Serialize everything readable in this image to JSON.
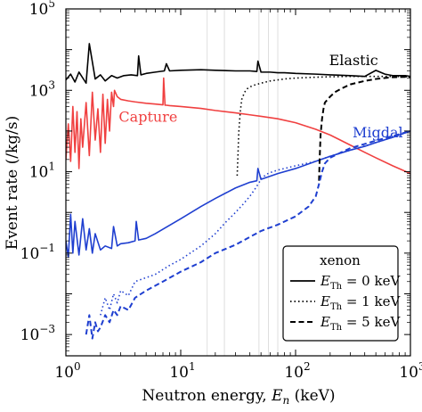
{
  "chart_data": {
    "type": "line",
    "title": "",
    "xlabel": "Neutron energy, E_n (keV)",
    "ylabel": "Event rate (/kg/s)",
    "xscale": "log",
    "yscale": "log",
    "xlim": [
      1,
      1000
    ],
    "ylim": [
      0.0003,
      100000
    ],
    "x_ticks": [
      {
        "value": 1,
        "base": "10",
        "exp": "0"
      },
      {
        "value": 10,
        "base": "10",
        "exp": "1"
      },
      {
        "value": 100,
        "base": "10",
        "exp": "2"
      },
      {
        "value": 1000,
        "base": "10",
        "exp": "3"
      }
    ],
    "y_ticks": [
      {
        "value": 0.001,
        "base": "10",
        "exp": "−3"
      },
      {
        "value": 0.1,
        "base": "10",
        "exp": "−1"
      },
      {
        "value": 10,
        "base": "10",
        "exp": "1"
      },
      {
        "value": 1000,
        "base": "10",
        "exp": "3"
      },
      {
        "value": 100000,
        "base": "10",
        "exp": "5"
      }
    ],
    "grid": "faint vertical lines",
    "vgrid_x": [
      17,
      24,
      48,
      58,
      70
    ],
    "annotations": [
      {
        "text": "Elastic",
        "color": "#000000",
        "x": 320,
        "y": 4200
      },
      {
        "text": "Capture",
        "color": "#f04040",
        "x": 5.2,
        "y": 170
      },
      {
        "text": "Migdal",
        "color": "#1f3fd0",
        "x": 520,
        "y": 70
      }
    ],
    "series": [
      {
        "style": "solid",
        "color": "#000000",
        "x": [
          1.0,
          1.1,
          1.2,
          1.3,
          1.5,
          1.6,
          1.8,
          2.0,
          2.2,
          2.5,
          2.8,
          3.2,
          3.7,
          4.2,
          4.3,
          4.5,
          5,
          6,
          7.2,
          7.5,
          8,
          10,
          15,
          20,
          30,
          40,
          46,
          47,
          50,
          60,
          70,
          80,
          100,
          150,
          200,
          300,
          400,
          500,
          600,
          700,
          800,
          900,
          1000
        ],
        "y": [
          1800,
          2500,
          1600,
          2800,
          1500,
          14000,
          1900,
          2400,
          1700,
          2300,
          2000,
          2300,
          2400,
          2300,
          7000,
          2400,
          2600,
          2800,
          3000,
          4500,
          3000,
          3100,
          3200,
          3100,
          3000,
          3000,
          2900,
          5200,
          2800,
          2800,
          2700,
          2700,
          2600,
          2500,
          2400,
          2300,
          2200,
          3100,
          2500,
          2300,
          2300,
          2300,
          2200
        ]
      },
      {
        "style": "solid",
        "color": "#f04040",
        "x": [
          1.0,
          1.05,
          1.1,
          1.15,
          1.2,
          1.25,
          1.3,
          1.35,
          1.4,
          1.5,
          1.6,
          1.7,
          1.8,
          1.9,
          2.0,
          2.1,
          2.2,
          2.3,
          2.4,
          2.5,
          2.6,
          2.65,
          2.8,
          3.0,
          3.5,
          4,
          5,
          6,
          7,
          7.1,
          7.3,
          7.5,
          8,
          10,
          15,
          20,
          30,
          40,
          50,
          70,
          100,
          150,
          200,
          300,
          400,
          500,
          700,
          1000
        ],
        "y": [
          20,
          150,
          18,
          400,
          30,
          300,
          12,
          200,
          40,
          500,
          25,
          900,
          60,
          350,
          30,
          800,
          50,
          600,
          100,
          900,
          400,
          1000,
          700,
          600,
          550,
          520,
          480,
          460,
          440,
          2000,
          430,
          430,
          420,
          400,
          360,
          320,
          280,
          250,
          230,
          200,
          160,
          110,
          80,
          45,
          30,
          22,
          14,
          9
        ]
      },
      {
        "style": "solid",
        "color": "#1f3fd0",
        "x": [
          1.0,
          1.05,
          1.1,
          1.15,
          1.2,
          1.3,
          1.4,
          1.5,
          1.6,
          1.7,
          1.8,
          2.0,
          2.2,
          2.5,
          2.6,
          2.8,
          3.0,
          3.5,
          4.0,
          4.1,
          4.3,
          5,
          6,
          10,
          15,
          20,
          30,
          40,
          46,
          47,
          50,
          70,
          100,
          150,
          200,
          300,
          400,
          500,
          700,
          1000
        ],
        "y": [
          0.2,
          0.08,
          0.9,
          0.1,
          0.6,
          0.09,
          0.7,
          0.12,
          0.4,
          0.1,
          0.3,
          0.12,
          0.15,
          0.13,
          0.45,
          0.15,
          0.17,
          0.18,
          0.2,
          0.6,
          0.21,
          0.23,
          0.3,
          0.7,
          1.4,
          2.2,
          4.0,
          5.5,
          6,
          12,
          6.5,
          9,
          12,
          18,
          24,
          34,
          42,
          52,
          70,
          100
        ]
      },
      {
        "style": "dotted",
        "color": "#000000",
        "x": [
          31,
          31.5,
          32,
          33,
          34,
          36,
          38,
          42,
          46,
          50,
          60,
          70,
          80,
          100,
          150,
          200,
          300,
          500,
          700,
          1000
        ],
        "y": [
          8,
          25,
          90,
          300,
          600,
          900,
          1100,
          1300,
          1400,
          1500,
          1700,
          1800,
          1900,
          2000,
          2100,
          2150,
          2200,
          2200,
          2200,
          2150
        ]
      },
      {
        "style": "dotted",
        "color": "#1f3fd0",
        "x": [
          2.0,
          2.2,
          2.4,
          2.6,
          2.8,
          3.0,
          3.5,
          4.0,
          5,
          6,
          8,
          10,
          15,
          20,
          25,
          30,
          35,
          40,
          45,
          50,
          55,
          60,
          70,
          80,
          100,
          150,
          200,
          300,
          500,
          700,
          1000
        ],
        "y": [
          0.003,
          0.008,
          0.004,
          0.01,
          0.006,
          0.012,
          0.009,
          0.02,
          0.025,
          0.03,
          0.05,
          0.07,
          0.15,
          0.3,
          0.6,
          1.0,
          1.6,
          2.5,
          4.0,
          6.5,
          8.5,
          9.5,
          11,
          12,
          14,
          18,
          24,
          34,
          52,
          70,
          100
        ]
      },
      {
        "style": "dashed",
        "color": "#000000",
        "x": [
          160,
          162,
          165,
          170,
          175,
          180,
          200,
          220,
          250,
          300,
          400,
          500,
          700,
          1000
        ],
        "y": [
          6,
          20,
          80,
          200,
          350,
          500,
          700,
          900,
          1100,
          1400,
          1700,
          1900,
          2100,
          2150
        ]
      },
      {
        "style": "dashed",
        "color": "#1f3fd0",
        "x": [
          1.5,
          1.6,
          1.7,
          1.8,
          1.9,
          2.0,
          2.2,
          2.4,
          2.6,
          2.8,
          3.0,
          3.5,
          4,
          5,
          7,
          10,
          15,
          20,
          30,
          40,
          50,
          70,
          100,
          130,
          150,
          160,
          170,
          180,
          200,
          250,
          300,
          400,
          500,
          700,
          1000
        ],
        "y": [
          0.001,
          0.003,
          0.0008,
          0.002,
          0.0012,
          0.0015,
          0.003,
          0.002,
          0.004,
          0.003,
          0.005,
          0.004,
          0.008,
          0.012,
          0.02,
          0.035,
          0.06,
          0.1,
          0.16,
          0.25,
          0.35,
          0.5,
          0.8,
          1.4,
          2.5,
          5,
          10,
          16,
          22,
          30,
          38,
          48,
          58,
          75,
          100
        ]
      }
    ],
    "legend": {
      "title": "xenon",
      "placement": "lower-right",
      "entries": [
        {
          "style": "solid",
          "sym": "E",
          "sub": "Th",
          "rest": " = 0 keV"
        },
        {
          "style": "dotted",
          "sym": "E",
          "sub": "Th",
          "rest": " = 1 keV"
        },
        {
          "style": "dashed",
          "sym": "E",
          "sub": "Th",
          "rest": " = 5 keV"
        }
      ]
    }
  }
}
